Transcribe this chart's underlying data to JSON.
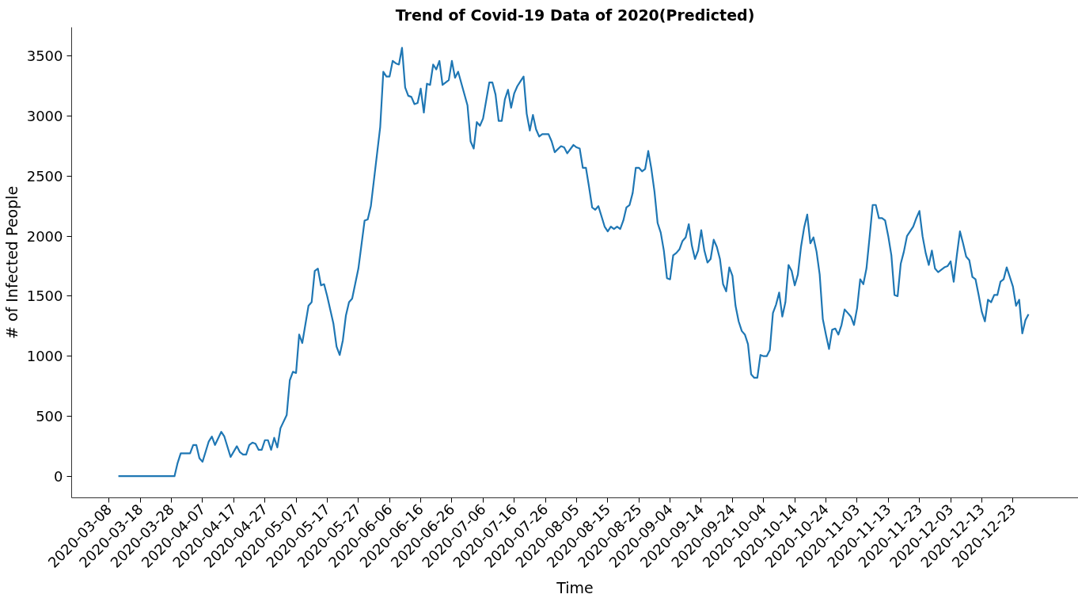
{
  "chart_data": {
    "type": "line",
    "title": "Trend of Covid-19 Data of 2020(Predicted)",
    "xlabel": "Time",
    "ylabel": "# of Infected People",
    "x": [
      "2020-03-11",
      "2020-03-29",
      "2020-03-30",
      "2020-03-31",
      "2020-04-03",
      "2020-04-04",
      "2020-04-05",
      "2020-04-06",
      "2020-04-07",
      "2020-04-09",
      "2020-04-10",
      "2020-04-11",
      "2020-04-13",
      "2020-04-14",
      "2020-04-16",
      "2020-04-18",
      "2020-04-19",
      "2020-04-20",
      "2020-04-21",
      "2020-04-22",
      "2020-04-23",
      "2020-04-24",
      "2020-04-25",
      "2020-04-26",
      "2020-04-27",
      "2020-04-28",
      "2020-04-29",
      "2020-04-30",
      "2020-05-01",
      "2020-05-02",
      "2020-05-04",
      "2020-05-05",
      "2020-05-06",
      "2020-05-07",
      "2020-05-08",
      "2020-05-09",
      "2020-05-11",
      "2020-05-12",
      "2020-05-13",
      "2020-05-14",
      "2020-05-15",
      "2020-05-16",
      "2020-05-17",
      "2020-05-19",
      "2020-05-20",
      "2020-05-21",
      "2020-05-22",
      "2020-05-23",
      "2020-05-24",
      "2020-05-25",
      "2020-05-27",
      "2020-05-29",
      "2020-05-30",
      "2020-05-31",
      "2020-06-03",
      "2020-06-04",
      "2020-06-05",
      "2020-06-06",
      "2020-06-07",
      "2020-06-08",
      "2020-06-09",
      "2020-06-10",
      "2020-06-11",
      "2020-06-12",
      "2020-06-13",
      "2020-06-14",
      "2020-06-15",
      "2020-06-16",
      "2020-06-17",
      "2020-06-18",
      "2020-06-19",
      "2020-06-20",
      "2020-06-21",
      "2020-06-22",
      "2020-06-23",
      "2020-06-25",
      "2020-06-26",
      "2020-06-27",
      "2020-06-28",
      "2020-07-01",
      "2020-07-02",
      "2020-07-03",
      "2020-07-04",
      "2020-07-05",
      "2020-07-06",
      "2020-07-08",
      "2020-07-09",
      "2020-07-10",
      "2020-07-11",
      "2020-07-12",
      "2020-07-13",
      "2020-07-14",
      "2020-07-15",
      "2020-07-16",
      "2020-07-17",
      "2020-07-18",
      "2020-07-19",
      "2020-07-20",
      "2020-07-21",
      "2020-07-22",
      "2020-07-23",
      "2020-07-24",
      "2020-07-25",
      "2020-07-27",
      "2020-07-28",
      "2020-07-29",
      "2020-07-31",
      "2020-08-01",
      "2020-08-02",
      "2020-08-04",
      "2020-08-05",
      "2020-08-06",
      "2020-08-07",
      "2020-08-08",
      "2020-08-09",
      "2020-08-10",
      "2020-08-11",
      "2020-08-12",
      "2020-08-14",
      "2020-08-15",
      "2020-08-16",
      "2020-08-17",
      "2020-08-18",
      "2020-08-19",
      "2020-08-20",
      "2020-08-21",
      "2020-08-22",
      "2020-08-23",
      "2020-08-24",
      "2020-08-25",
      "2020-08-26",
      "2020-08-27",
      "2020-08-28",
      "2020-08-29",
      "2020-08-30",
      "2020-08-31",
      "2020-09-01",
      "2020-09-02",
      "2020-09-03",
      "2020-09-04",
      "2020-09-05",
      "2020-09-06",
      "2020-09-07",
      "2020-09-08",
      "2020-09-09",
      "2020-09-10",
      "2020-09-11",
      "2020-09-12",
      "2020-09-13",
      "2020-09-14",
      "2020-09-15",
      "2020-09-16",
      "2020-09-17",
      "2020-09-18",
      "2020-09-19",
      "2020-09-20",
      "2020-09-21",
      "2020-09-22",
      "2020-09-23",
      "2020-09-24",
      "2020-09-25",
      "2020-09-26",
      "2020-09-27",
      "2020-09-28",
      "2020-09-29",
      "2020-09-30",
      "2020-10-01",
      "2020-10-02",
      "2020-10-03",
      "2020-10-04",
      "2020-10-05",
      "2020-10-06",
      "2020-10-07",
      "2020-10-08",
      "2020-10-09",
      "2020-10-10",
      "2020-10-11",
      "2020-10-12",
      "2020-10-13",
      "2020-10-14",
      "2020-10-15",
      "2020-10-16",
      "2020-10-17",
      "2020-10-18",
      "2020-10-19",
      "2020-10-20",
      "2020-10-21",
      "2020-10-22",
      "2020-10-23",
      "2020-10-24",
      "2020-10-25",
      "2020-10-26",
      "2020-10-27",
      "2020-10-28",
      "2020-10-29",
      "2020-10-30",
      "2020-10-31",
      "2020-11-01",
      "2020-11-02",
      "2020-11-03",
      "2020-11-04",
      "2020-11-05",
      "2020-11-06",
      "2020-11-07",
      "2020-11-08",
      "2020-11-09",
      "2020-11-10",
      "2020-11-11",
      "2020-11-12",
      "2020-11-13",
      "2020-11-14",
      "2020-11-15",
      "2020-11-16",
      "2020-11-17",
      "2020-11-18",
      "2020-11-19",
      "2020-11-20",
      "2020-11-21",
      "2020-11-22",
      "2020-11-23",
      "2020-11-24",
      "2020-11-25",
      "2020-11-26",
      "2020-11-27",
      "2020-11-28",
      "2020-11-29",
      "2020-11-30",
      "2020-12-01",
      "2020-12-02",
      "2020-12-03",
      "2020-12-04",
      "2020-12-05",
      "2020-12-06",
      "2020-12-07",
      "2020-12-08",
      "2020-12-09",
      "2020-12-10",
      "2020-12-11",
      "2020-12-12",
      "2020-12-13",
      "2020-12-14",
      "2020-12-15",
      "2020-12-16",
      "2020-12-17",
      "2020-12-18",
      "2020-12-19",
      "2020-12-20",
      "2020-12-21",
      "2020-12-22",
      "2020-12-23",
      "2020-12-24",
      "2020-12-25",
      "2020-12-26",
      "2020-12-27",
      "2020-12-28"
    ],
    "series": [
      {
        "color": "#1f77b4",
        "values": [
          0,
          0,
          110,
          190,
          190,
          260,
          260,
          150,
          120,
          290,
          330,
          260,
          370,
          330,
          160,
          250,
          200,
          180,
          180,
          260,
          280,
          270,
          220,
          220,
          300,
          300,
          220,
          320,
          240,
          400,
          510,
          800,
          870,
          860,
          1180,
          1110,
          1420,
          1450,
          1710,
          1730,
          1590,
          1600,
          1500,
          1270,
          1080,
          1010,
          1130,
          1340,
          1450,
          1480,
          1730,
          2130,
          2140,
          2250,
          2910,
          3370,
          3330,
          3330,
          3460,
          3440,
          3430,
          3570,
          3240,
          3170,
          3160,
          3100,
          3110,
          3230,
          3030,
          3270,
          3260,
          3430,
          3390,
          3460,
          3260,
          3300,
          3460,
          3320,
          3370,
          3090,
          2790,
          2730,
          2950,
          2920,
          2980,
          3280,
          3280,
          3180,
          2960,
          2960,
          3140,
          3220,
          3070,
          3190,
          3250,
          3290,
          3330,
          3020,
          2880,
          3010,
          2890,
          2830,
          2850,
          2850,
          2790,
          2700,
          2750,
          2740,
          2690,
          2760,
          2740,
          2730,
          2570,
          2570,
          2410,
          2240,
          2220,
          2250,
          2080,
          2040,
          2080,
          2060,
          2080,
          2060,
          2130,
          2240,
          2260,
          2360,
          2570,
          2570,
          2540,
          2560,
          2710,
          2560,
          2370,
          2110,
          2030,
          1880,
          1650,
          1640,
          1840,
          1860,
          1890,
          1960,
          1990,
          2100,
          1920,
          1810,
          1880,
          2050,
          1880,
          1780,
          1810,
          1970,
          1910,
          1810,
          1600,
          1540,
          1740,
          1670,
          1420,
          1290,
          1210,
          1180,
          1100,
          850,
          820,
          820,
          1010,
          1000,
          1000,
          1050,
          1360,
          1430,
          1530,
          1330,
          1450,
          1760,
          1710,
          1590,
          1680,
          1910,
          2070,
          2180,
          1940,
          1990,
          1870,
          1680,
          1310,
          1180,
          1060,
          1220,
          1230,
          1180,
          1260,
          1390,
          1360,
          1330,
          1260,
          1400,
          1640,
          1600,
          1730,
          1990,
          2260,
          2260,
          2150,
          2150,
          2130,
          2000,
          1840,
          1510,
          1500,
          1770,
          1870,
          2000,
          2040,
          2080,
          2150,
          2210,
          2000,
          1860,
          1760,
          1880,
          1730,
          1700,
          1720,
          1740,
          1750,
          1790,
          1620,
          1840,
          2040,
          1940,
          1830,
          1800,
          1660,
          1640,
          1510,
          1370,
          1290,
          1470,
          1450,
          1510,
          1510,
          1620,
          1640,
          1740,
          1660,
          1580,
          1420,
          1470,
          1190,
          1300,
          1350
        ]
      }
    ],
    "xlim": [
      "2020-02-25",
      "2021-01-13"
    ],
    "xticks": [
      "2020-03-08",
      "2020-03-18",
      "2020-03-28",
      "2020-04-07",
      "2020-04-17",
      "2020-04-27",
      "2020-05-07",
      "2020-05-17",
      "2020-05-27",
      "2020-06-06",
      "2020-06-16",
      "2020-06-26",
      "2020-07-06",
      "2020-07-16",
      "2020-07-26",
      "2020-08-05",
      "2020-08-15",
      "2020-08-25",
      "2020-09-04",
      "2020-09-14",
      "2020-09-24",
      "2020-10-04",
      "2020-10-14",
      "2020-10-24",
      "2020-11-03",
      "2020-11-13",
      "2020-11-23",
      "2020-12-03",
      "2020-12-13",
      "2020-12-23"
    ],
    "ylim": [
      -180,
      3740
    ],
    "yticks": [
      0,
      500,
      1000,
      1500,
      2000,
      2500,
      3000,
      3500
    ],
    "grid": false,
    "marker": "none",
    "line_style": "solid"
  }
}
